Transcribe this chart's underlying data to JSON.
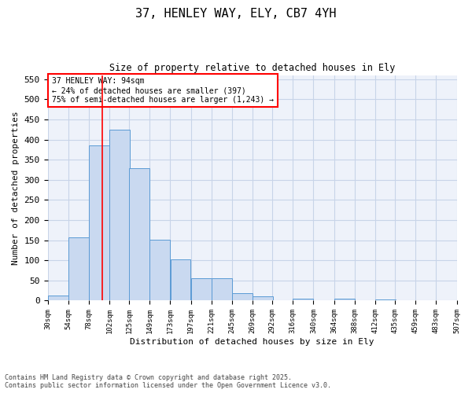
{
  "title_line1": "37, HENLEY WAY, ELY, CB7 4YH",
  "title_line2": "Size of property relative to detached houses in Ely",
  "xlabel": "Distribution of detached houses by size in Ely",
  "ylabel": "Number of detached properties",
  "annotation_line1": "37 HENLEY WAY: 94sqm",
  "annotation_line2": "← 24% of detached houses are smaller (397)",
  "annotation_line3": "75% of semi-detached houses are larger (1,243) →",
  "red_line_x": 94,
  "bins_left": [
    30,
    54,
    78,
    102,
    125,
    149,
    173,
    197,
    221,
    245,
    269,
    292,
    316,
    340,
    364,
    388,
    412,
    435,
    459,
    483
  ],
  "bin_width": 24,
  "bar_heights": [
    12,
    157,
    385,
    425,
    328,
    152,
    102,
    55,
    55,
    18,
    10,
    0,
    5,
    0,
    5,
    0,
    3,
    0,
    1,
    0
  ],
  "bar_color": "#c9d9f0",
  "bar_edge_color": "#5b9bd5",
  "ylim": [
    0,
    560
  ],
  "yticks": [
    0,
    50,
    100,
    150,
    200,
    250,
    300,
    350,
    400,
    450,
    500,
    550
  ],
  "tick_labels": [
    "30sqm",
    "54sqm",
    "78sqm",
    "102sqm",
    "125sqm",
    "149sqm",
    "173sqm",
    "197sqm",
    "221sqm",
    "245sqm",
    "269sqm",
    "292sqm",
    "316sqm",
    "340sqm",
    "364sqm",
    "388sqm",
    "412sqm",
    "435sqm",
    "459sqm",
    "483sqm",
    "507sqm"
  ],
  "grid_color": "#c8d4e8",
  "background_color": "#eef2fa",
  "footer_line1": "Contains HM Land Registry data © Crown copyright and database right 2025.",
  "footer_line2": "Contains public sector information licensed under the Open Government Licence v3.0."
}
